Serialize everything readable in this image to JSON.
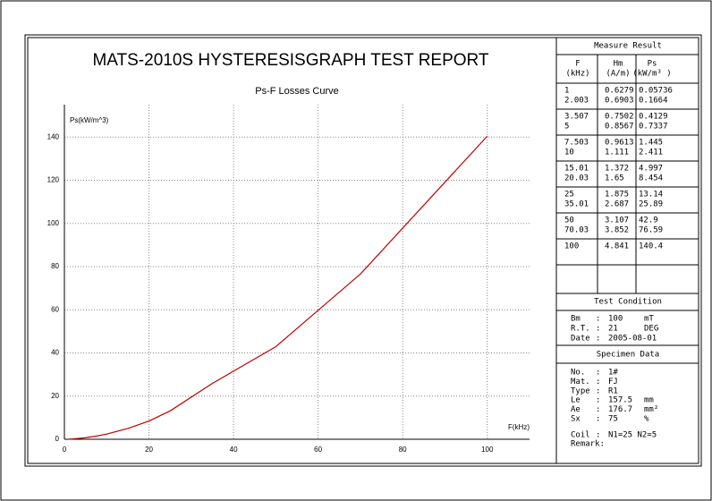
{
  "title": "MATS-2010S HYSTERESISGRAPH TEST REPORT",
  "chart_data": {
    "type": "line",
    "title": "Ps-F Losses Curve",
    "x_label": "F(kHz)",
    "y_label": "Ps(kW/m^3)",
    "x": [
      1,
      2.003,
      3.507,
      5,
      7.503,
      10,
      15.01,
      20.03,
      25,
      35.01,
      50,
      70.03,
      100
    ],
    "values": [
      0.05736,
      0.1664,
      0.4129,
      0.7337,
      1.445,
      2.411,
      4.997,
      8.454,
      13.14,
      25.89,
      42.9,
      76.59,
      140.4
    ],
    "color": "#c00000",
    "xlim": [
      0,
      110
    ],
    "ylim": [
      0,
      155
    ],
    "xticks": [
      0,
      20,
      40,
      60,
      80,
      100
    ],
    "yticks": [
      0,
      20,
      40,
      60,
      80,
      100,
      120,
      140
    ],
    "grid": true
  },
  "measure_result": {
    "title": "Measure Result",
    "headers": [
      [
        "F",
        "(kHz)"
      ],
      [
        "Hm",
        "(A/m)"
      ],
      [
        "Ps",
        "(kW/m³ )"
      ]
    ],
    "hm": [
      0.6279,
      0.6903,
      0.7502,
      0.8567,
      0.9613,
      1.111,
      1.372,
      1.65,
      1.875,
      2.687,
      3.107,
      3.852,
      4.841
    ]
  },
  "test_condition": {
    "title": "Test Condition",
    "rows": [
      [
        "Bm",
        ":",
        100,
        "mT"
      ],
      [
        "R.T.",
        ":",
        21,
        "DEG"
      ],
      [
        "Date",
        ":",
        "2005-08-01"
      ]
    ]
  },
  "specimen_data": {
    "title": "Specimen Data",
    "rows": [
      [
        "No.",
        ":",
        "1#"
      ],
      [
        "Mat.",
        ":",
        "FJ"
      ],
      [
        "Type",
        ":",
        "R1"
      ],
      [
        "Le",
        ":",
        157.5,
        "mm"
      ],
      [
        "Ae",
        ":",
        176.7,
        "mm²"
      ],
      [
        "Sx",
        ":",
        75,
        "%"
      ]
    ],
    "coil": [
      "Coil",
      ":",
      "N1=25 N2=5"
    ],
    "remark": "Remark:"
  }
}
